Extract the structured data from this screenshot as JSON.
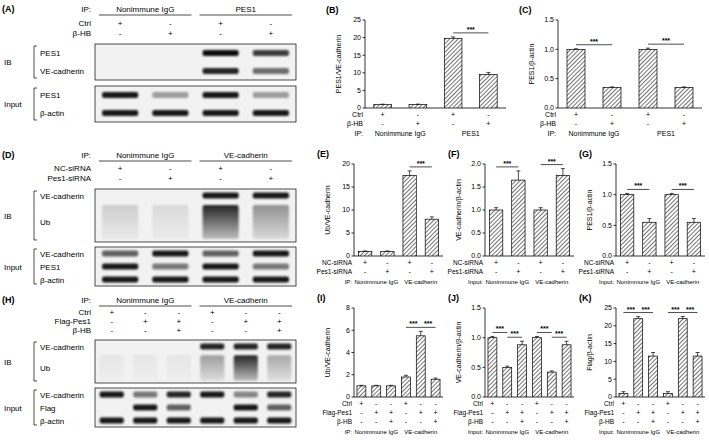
{
  "chart_data": [
    {
      "label": "(B)",
      "type": "bar",
      "y_label": "PES1/VE-cadherin",
      "categories": [
        null,
        null,
        null,
        null
      ],
      "values": [
        1,
        1,
        19.8,
        9.5
      ],
      "errors": [
        0.1,
        0.1,
        0.4,
        0.6
      ],
      "color": "#000000",
      "ylim": [
        0,
        25
      ],
      "yticks": [
        0,
        5,
        10,
        15,
        20,
        25
      ],
      "conditions": [
        {
          "name": "Ctrl",
          "signs": [
            "+",
            "-",
            "+",
            "-"
          ]
        },
        {
          "name": "β-HB",
          "signs": [
            "-",
            "+",
            "-",
            "+"
          ]
        }
      ],
      "group_prefix": "IP:",
      "groups": [
        "Nonimmune IgG",
        "PES1"
      ],
      "annotations": [
        {
          "text": "***",
          "between": [
            2,
            3
          ]
        }
      ]
    },
    {
      "label": "(C)",
      "type": "bar",
      "y_label": "PES1/β-actin",
      "categories": [
        null,
        null,
        null,
        null
      ],
      "values": [
        1,
        0.35,
        1,
        0.35
      ],
      "errors": [
        0.01,
        0.01,
        0.02,
        0.01
      ],
      "color": "#000000",
      "ylim": [
        0,
        1.5
      ],
      "yticks": [
        {
          "value": 0,
          "label": "0.0"
        },
        {
          "value": 0.5,
          "label": "0.5"
        },
        {
          "value": 1,
          "label": "1.0"
        },
        {
          "value": 1.5,
          "label": "1.5"
        }
      ],
      "conditions": [
        {
          "name": "Ctrl",
          "signs": [
            "+",
            "-",
            "+",
            "-"
          ]
        },
        {
          "name": "β-HB",
          "signs": [
            "-",
            "+",
            "-",
            "+"
          ]
        }
      ],
      "group_prefix": "IP:",
      "groups": [
        "Nonimmune IgG",
        "PES1"
      ],
      "annotations": [
        {
          "text": "***",
          "between": [
            0,
            1
          ]
        },
        {
          "text": "***",
          "between": [
            2,
            3
          ]
        }
      ]
    },
    {
      "label": "(E)",
      "type": "bar",
      "y_label": "Ub/VE-cadherin",
      "categories": [
        null,
        null,
        null,
        null
      ],
      "values": [
        1,
        1,
        17.5,
        8
      ],
      "errors": [
        0.1,
        0.1,
        1,
        0.5
      ],
      "color": "#000000",
      "ylim": [
        0,
        20
      ],
      "yticks": [
        0,
        5,
        10,
        15,
        20
      ],
      "conditions": [
        {
          "name": "NC-siRNA",
          "signs": [
            "+",
            "-",
            "+",
            "-"
          ]
        },
        {
          "name": "Pes1-siRNA",
          "signs": [
            "-",
            "+",
            "-",
            "+"
          ]
        }
      ],
      "group_prefix": "IP:",
      "groups": [
        "Nonimmune IgG",
        "VE-cadherin"
      ],
      "annotations": [
        {
          "text": "***",
          "between": [
            2,
            3
          ]
        }
      ]
    },
    {
      "label": "(F)",
      "type": "bar",
      "y_label": "VE-cadherin/β-actin",
      "categories": [
        null,
        null,
        null,
        null
      ],
      "values": [
        1,
        1.65,
        1,
        1.75
      ],
      "errors": [
        0.05,
        0.2,
        0.05,
        0.15
      ],
      "color": "#000000",
      "ylim": [
        0,
        2
      ],
      "yticks": [
        {
          "value": 0,
          "label": "0.0"
        },
        {
          "value": 0.5,
          "label": "0.5"
        },
        {
          "value": 1,
          "label": "1.0"
        },
        {
          "value": 1.5,
          "label": "1.5"
        },
        {
          "value": 2,
          "label": "2.0"
        }
      ],
      "conditions": [
        {
          "name": "NC-siRNA",
          "signs": [
            "+",
            "-",
            "+",
            "-"
          ]
        },
        {
          "name": "Pes1-siRNA",
          "signs": [
            "-",
            "+",
            "-",
            "+"
          ]
        }
      ],
      "group_prefix": "Input:",
      "groups": [
        "Nonimmune IgG",
        "VE-cadherin"
      ],
      "annotations": [
        {
          "text": "***",
          "between": [
            0,
            1
          ]
        },
        {
          "text": "***",
          "between": [
            2,
            3
          ]
        }
      ]
    },
    {
      "label": "(G)",
      "type": "bar",
      "y_label": "PES1/β-actin",
      "categories": [
        null,
        null,
        null,
        null
      ],
      "values": [
        1,
        0.55,
        1,
        0.55
      ],
      "errors": [
        0.02,
        0.06,
        0.02,
        0.06
      ],
      "color": "#000000",
      "ylim": [
        0,
        1.5
      ],
      "yticks": [
        {
          "value": 0,
          "label": "0.0"
        },
        {
          "value": 0.5,
          "label": "0.5"
        },
        {
          "value": 1,
          "label": "1.0"
        },
        {
          "value": 1.5,
          "label": "1.5"
        }
      ],
      "conditions": [
        {
          "name": "NC-siRNA",
          "signs": [
            "+",
            "-",
            "+",
            "-"
          ]
        },
        {
          "name": "Pes1-siRNA",
          "signs": [
            "-",
            "+",
            "-",
            "+"
          ]
        }
      ],
      "group_prefix": "Input:",
      "groups": [
        "Nonimmune IgG",
        "VE-cadherin"
      ],
      "annotations": [
        {
          "text": "***",
          "between": [
            0,
            1
          ]
        },
        {
          "text": "***",
          "between": [
            2,
            3
          ]
        }
      ]
    },
    {
      "label": "(I)",
      "type": "bar",
      "y_label": "Ub/VE-cadherin",
      "categories": [
        null,
        null,
        null,
        null,
        null,
        null
      ],
      "values": [
        1,
        1,
        1,
        1.8,
        5.5,
        1.6
      ],
      "errors": [
        0.05,
        0.05,
        0.05,
        0.15,
        0.4,
        0.1
      ],
      "color": "#000000",
      "ylim": [
        0,
        8
      ],
      "yticks": [
        0,
        2,
        4,
        6,
        8
      ],
      "conditions": [
        {
          "name": "Ctrl",
          "signs": [
            "+",
            "-",
            "-",
            "+",
            "-",
            "-"
          ]
        },
        {
          "name": "Flag-Pes1",
          "signs": [
            "-",
            "+",
            "+",
            "-",
            "+",
            "+"
          ]
        },
        {
          "name": "β-HB",
          "signs": [
            "-",
            "-",
            "+",
            "-",
            "-",
            "+"
          ]
        }
      ],
      "group_prefix": "IP:",
      "groups": [
        "Nonimmune IgG",
        "VE-cadherin"
      ],
      "annotations": [
        {
          "text": "***",
          "between": [
            3,
            4
          ]
        },
        {
          "text": "***",
          "between": [
            4,
            5
          ]
        }
      ]
    },
    {
      "label": "(J)",
      "type": "bar",
      "y_label": "VE-cadherin/β-actin",
      "categories": [
        null,
        null,
        null,
        null,
        null,
        null
      ],
      "values": [
        1,
        0.5,
        0.88,
        1,
        0.42,
        0.88
      ],
      "errors": [
        0.02,
        0.02,
        0.06,
        0.02,
        0.02,
        0.06
      ],
      "color": "#000000",
      "ylim": [
        0,
        1.5
      ],
      "yticks": [
        {
          "value": 0,
          "label": "0.0"
        },
        {
          "value": 0.5,
          "label": "0.5"
        },
        {
          "value": 1,
          "label": "1.0"
        },
        {
          "value": 1.5,
          "label": "1.5"
        }
      ],
      "conditions": [
        {
          "name": "Ctrl",
          "signs": [
            "+",
            "-",
            "-",
            "+",
            "-",
            "-"
          ]
        },
        {
          "name": "Flag-Pes1",
          "signs": [
            "-",
            "+",
            "+",
            "-",
            "+",
            "+"
          ]
        },
        {
          "name": "β-HB",
          "signs": [
            "-",
            "-",
            "+",
            "-",
            "-",
            "+"
          ]
        }
      ],
      "group_prefix": "Input:",
      "groups": [
        "Nonimmune IgG",
        "VE-cadherin"
      ],
      "annotations": [
        {
          "text": "***",
          "between": [
            0,
            1
          ]
        },
        {
          "text": "***",
          "between": [
            1,
            2
          ]
        },
        {
          "text": "***",
          "between": [
            3,
            4
          ]
        },
        {
          "text": "***",
          "between": [
            4,
            5
          ]
        }
      ]
    },
    {
      "label": "(K)",
      "type": "bar",
      "y_label": "Flag/β-actin",
      "categories": [
        null,
        null,
        null,
        null,
        null,
        null
      ],
      "values": [
        1,
        22,
        11.5,
        1,
        22,
        11.5
      ],
      "errors": [
        0.5,
        0.6,
        1,
        0.5,
        0.6,
        1
      ],
      "color": "#000000",
      "ylim": [
        0,
        25
      ],
      "yticks": [
        0,
        5,
        10,
        15,
        20,
        25
      ],
      "conditions": [
        {
          "name": "Ctrl",
          "signs": [
            "+",
            "-",
            "-",
            "+",
            "-",
            "-"
          ]
        },
        {
          "name": "Flag-Pes1",
          "signs": [
            "-",
            "+",
            "+",
            "-",
            "+",
            "+"
          ]
        },
        {
          "name": "β-HB",
          "signs": [
            "-",
            "-",
            "+",
            "-",
            "-",
            "+"
          ]
        }
      ],
      "group_prefix": "Input:",
      "groups": [
        "Nonimmune IgG",
        "VE-cadherin"
      ],
      "annotations": [
        {
          "text": "***",
          "between": [
            0,
            1
          ]
        },
        {
          "text": "***",
          "between": [
            1,
            2
          ]
        },
        {
          "text": "***",
          "between": [
            3,
            4
          ]
        },
        {
          "text": "***",
          "between": [
            4,
            5
          ]
        }
      ]
    }
  ],
  "blots": [
    {
      "label": "(A)",
      "ip_prefix": "IP:",
      "ip_groups": [
        "Nonimmune IgG",
        "PES1"
      ],
      "conditions": [
        {
          "name": "Ctrl",
          "signs": [
            "+",
            "-",
            "+",
            "-"
          ]
        },
        {
          "name": "β-HB",
          "signs": [
            "-",
            "+",
            "-",
            "+"
          ]
        }
      ],
      "sections": [
        {
          "name": "IB",
          "rows": [
            "PES1",
            "VE-cadherin"
          ]
        },
        {
          "name": "Input",
          "rows": [
            "PES1",
            "β-actin"
          ]
        }
      ]
    },
    {
      "label": "(D)",
      "ip_prefix": "IP:",
      "ip_groups": [
        "Nonimmune IgG",
        "VE-cadherin"
      ],
      "conditions": [
        {
          "name": "NC-siRNA",
          "signs": [
            "+",
            "-",
            "+",
            "-"
          ]
        },
        {
          "name": "Pes1-siRNA",
          "signs": [
            "-",
            "+",
            "-",
            "+"
          ]
        }
      ],
      "sections": [
        {
          "name": "IB",
          "rows": [
            "VE-cadherin",
            "Ub"
          ]
        },
        {
          "name": "Input",
          "rows": [
            "VE-cadherin",
            "PES1",
            "β-actin"
          ]
        }
      ]
    },
    {
      "label": "(H)",
      "ip_prefix": "IP:",
      "ip_groups": [
        "Nonimmune IgG",
        "VE-cadherin"
      ],
      "conditions": [
        {
          "name": "Ctrl",
          "signs": [
            "+",
            "-",
            "-",
            "+",
            "-",
            "-"
          ]
        },
        {
          "name": "Flag-Pes1",
          "signs": [
            "-",
            "+",
            "+",
            "-",
            "+",
            "+"
          ]
        },
        {
          "name": "β-HB",
          "signs": [
            "-",
            "-",
            "+",
            "-",
            "-",
            "+"
          ]
        }
      ],
      "sections": [
        {
          "name": "IB",
          "rows": [
            "VE-cadherin",
            "Ub"
          ]
        },
        {
          "name": "Input",
          "rows": [
            "VE-cadherin",
            "Flag",
            "β-actin"
          ]
        }
      ]
    }
  ]
}
